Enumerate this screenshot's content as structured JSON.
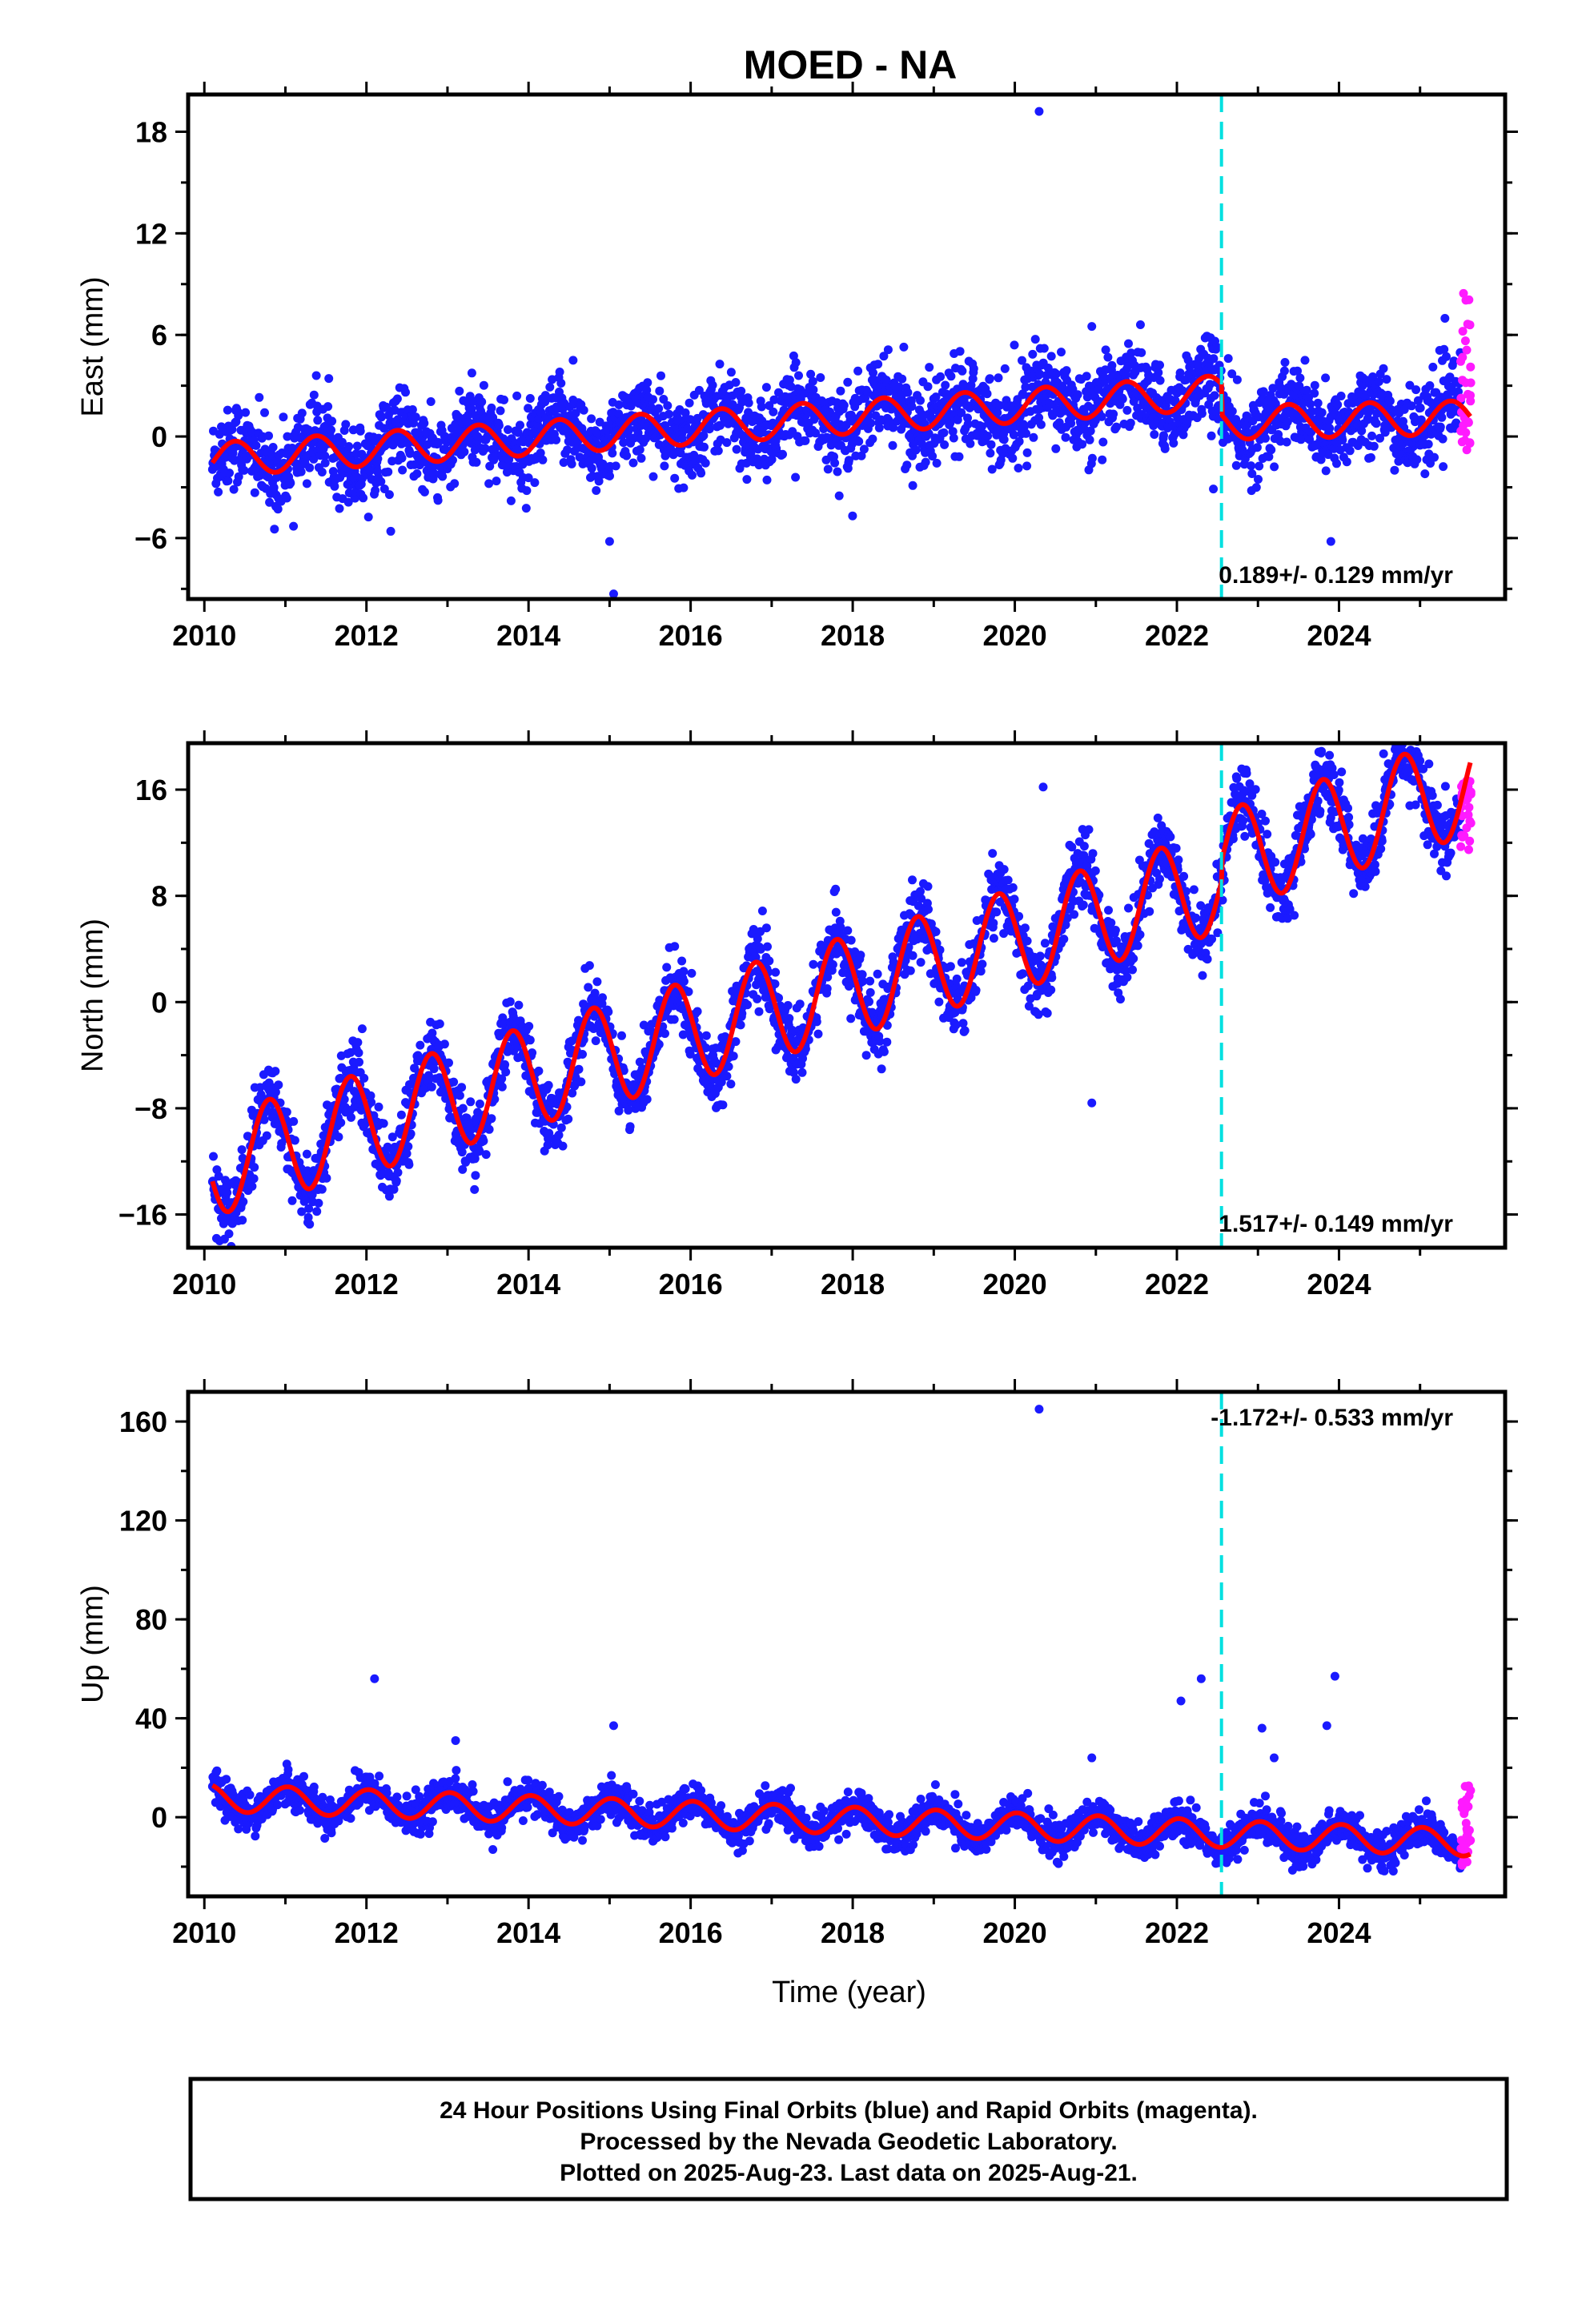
{
  "chart_data": {
    "title": "MOED - NA",
    "type": "scatter",
    "colors": {
      "final": "#1a1aff",
      "rapid": "#ff1aff",
      "model": "#ff0000",
      "event": "#00e0e0"
    },
    "event_line_year": 2022.55,
    "panels": [
      {
        "ylabel": "East (mm)",
        "ylim": [
          -9.6,
          20.2
        ],
        "yticks": [
          18,
          12,
          6,
          0,
          -6
        ],
        "ytick_labels": [
          "18",
          "12",
          "6",
          "0",
          "−6"
        ],
        "xlim": [
          2009.8,
          2026.05
        ],
        "xticks": [
          "2010",
          "2012",
          "2014",
          "2016",
          "2018",
          "2020",
          "2022",
          "2024"
        ],
        "rate_text": "0.189+/- 0.129 mm/yr",
        "rate_position": "bottom-right",
        "model": {
          "offset": -1.4,
          "slope": 0.32,
          "amplitude": 1.0,
          "phase_year": 0.13,
          "step_year": 2022.55,
          "step": -1.8,
          "slope_after": 0.1
        },
        "scatter_sigma": 1.2,
        "outliers": [
          [
            2020.3,
            19.2
          ],
          [
            2015.05,
            -9.3
          ],
          [
            2015.0,
            -6.2
          ],
          [
            2021.55,
            6.6
          ],
          [
            2020.95,
            6.5
          ],
          [
            2014.55,
            4.5
          ],
          [
            2023.9,
            -6.2
          ],
          [
            2019.25,
            4.9
          ],
          [
            2022.45,
            -3.1
          ],
          [
            2011.1,
            -5.3
          ],
          [
            2012.3,
            -5.6
          ]
        ],
        "rapid_range": [
          -0.8,
          8.6
        ]
      },
      {
        "ylabel": "North (mm)",
        "ylim": [
          -18.5,
          19.5
        ],
        "yticks": [
          16,
          8,
          0,
          -8,
          -16
        ],
        "ytick_labels": [
          "16",
          "8",
          "0",
          "−8",
          "−16"
        ],
        "xlim": [
          2009.8,
          2026.05
        ],
        "xticks": [
          "2010",
          "2012",
          "2014",
          "2016",
          "2018",
          "2020",
          "2022",
          "2024"
        ],
        "rate_text": "1.517+/- 0.149 mm/yr",
        "rate_position": "bottom-right",
        "model": {
          "offset": -12.5,
          "slope": 1.72,
          "amplitude": 3.8,
          "phase_year": 0.55,
          "step_year": 2022.55,
          "step": 1.5,
          "slope_after": 1.9
        },
        "scatter_sigma": 1.3,
        "outliers": [
          [
            2010.15,
            -17.8
          ],
          [
            2020.35,
            16.2
          ],
          [
            2020.95,
            -7.6
          ],
          [
            2024.55,
            18.7
          ]
        ],
        "rapid_range": [
          11.0,
          17.5
        ]
      },
      {
        "ylabel": "Up (mm)",
        "ylim": [
          -32,
          172
        ],
        "yticks": [
          160,
          120,
          80,
          40,
          0
        ],
        "ytick_labels": [
          "160",
          "120",
          "80",
          "40",
          "0"
        ],
        "xlim": [
          2009.8,
          2026.05
        ],
        "xticks": [
          "2010",
          "2012",
          "2014",
          "2016",
          "2018",
          "2020",
          "2022",
          "2024"
        ],
        "xlabel": "Time (year)",
        "rate_text": "-1.172+/- 0.533 mm/yr",
        "rate_position": "top-right",
        "model": {
          "offset": 8,
          "slope": -1.17,
          "amplitude": 5.5,
          "phase_year": 0.78,
          "step_year": 2022.55,
          "step": 0,
          "slope_after": -1.17
        },
        "scatter_sigma": 3.5,
        "outliers": [
          [
            2020.3,
            165
          ],
          [
            2012.1,
            56
          ],
          [
            2023.95,
            57
          ],
          [
            2022.05,
            47
          ],
          [
            2022.3,
            56
          ],
          [
            2023.85,
            37
          ],
          [
            2023.05,
            36
          ],
          [
            2015.05,
            37
          ],
          [
            2013.1,
            31
          ],
          [
            2020.95,
            24
          ],
          [
            2023.2,
            24
          ]
        ],
        "rapid_range": [
          -20,
          13
        ]
      }
    ]
  },
  "footer": {
    "line1": "24 Hour Positions Using Final Orbits (blue) and Rapid Orbits (magenta).",
    "line2": "Processed by the Nevada Geodetic Laboratory.",
    "line3": "Plotted on 2025-Aug-23. Last data on 2025-Aug-21."
  }
}
